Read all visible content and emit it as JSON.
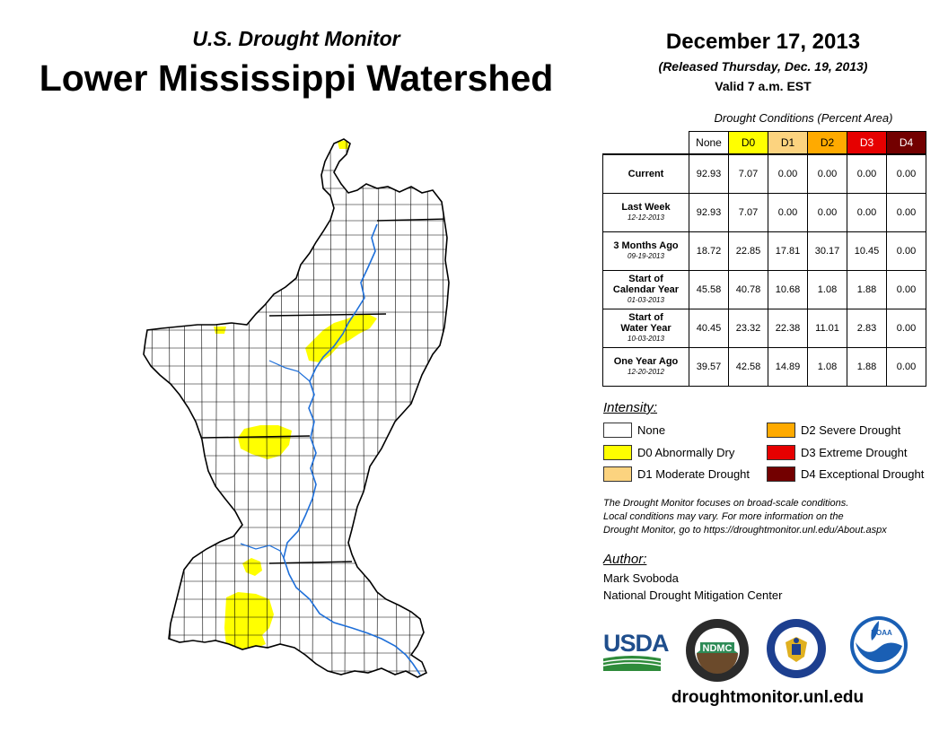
{
  "header": {
    "subtitle": "U.S. Drought Monitor",
    "title": "Lower Mississippi Watershed",
    "date": "December 17, 2013",
    "released": "(Released Thursday, Dec. 19, 2013)",
    "valid": "Valid 7 a.m. EST"
  },
  "conditions": {
    "title": "Drought Conditions (Percent Area)",
    "columns": [
      "None",
      "D0",
      "D1",
      "D2",
      "D3",
      "D4"
    ],
    "column_colors": [
      "#ffffff",
      "#ffff00",
      "#fcd37f",
      "#ffaa00",
      "#e60000",
      "#730000"
    ],
    "rows": [
      {
        "label": "Current",
        "label2": "",
        "date": "",
        "values": [
          "92.93",
          "7.07",
          "0.00",
          "0.00",
          "0.00",
          "0.00"
        ]
      },
      {
        "label": "Last Week",
        "label2": "",
        "date": "12-12-2013",
        "values": [
          "92.93",
          "7.07",
          "0.00",
          "0.00",
          "0.00",
          "0.00"
        ]
      },
      {
        "label": "3 Months Ago",
        "label2": "",
        "date": "09-19-2013",
        "values": [
          "18.72",
          "22.85",
          "17.81",
          "30.17",
          "10.45",
          "0.00"
        ]
      },
      {
        "label": "Start of",
        "label2": "Calendar Year",
        "date": "01-03-2013",
        "values": [
          "45.58",
          "40.78",
          "10.68",
          "1.08",
          "1.88",
          "0.00"
        ]
      },
      {
        "label": "Start of",
        "label2": "Water Year",
        "date": "10-03-2013",
        "values": [
          "40.45",
          "23.32",
          "22.38",
          "11.01",
          "2.83",
          "0.00"
        ]
      },
      {
        "label": "One Year Ago",
        "label2": "",
        "date": "12-20-2012",
        "values": [
          "39.57",
          "42.58",
          "14.89",
          "1.08",
          "1.88",
          "0.00"
        ]
      }
    ]
  },
  "legend": {
    "title": "Intensity:",
    "items": [
      {
        "label": "None",
        "color": "#ffffff"
      },
      {
        "label": "D0 Abnormally Dry",
        "color": "#ffff00"
      },
      {
        "label": "D1 Moderate Drought",
        "color": "#fcd37f"
      },
      {
        "label": "D2 Severe Drought",
        "color": "#ffaa00"
      },
      {
        "label": "D3 Extreme Drought",
        "color": "#e60000"
      },
      {
        "label": "D4 Exceptional Drought",
        "color": "#730000"
      }
    ]
  },
  "note": {
    "line1": "The Drought Monitor focuses on broad-scale conditions.",
    "line2": "Local conditions may vary. For more information on the",
    "line3": "Drought Monitor, go to https://droughtmonitor.unl.edu/About.aspx"
  },
  "author": {
    "title": "Author:",
    "name": "Mark Svoboda",
    "org": "National Drought Mitigation Center"
  },
  "logos": {
    "usda": "USDA",
    "ndmc": "NDMC",
    "noaa": "NOAA"
  },
  "footer": {
    "url": "droughtmonitor.unl.edu"
  },
  "map": {
    "county_line_color": "#000000",
    "river_color": "#1e6fd9",
    "dry_color": "#ffff00"
  }
}
